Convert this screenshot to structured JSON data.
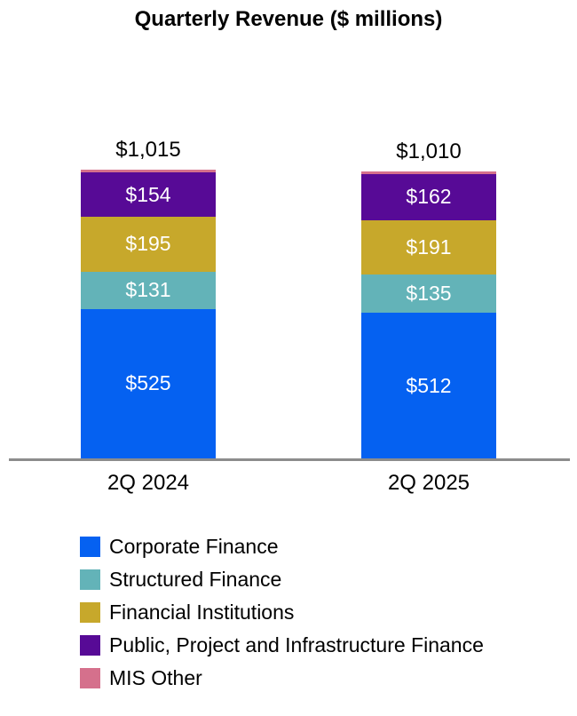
{
  "chart_data": {
    "type": "bar",
    "stacked": true,
    "title": "Quarterly Revenue ($ millions)",
    "categories": [
      "2Q 2024",
      "2Q 2025"
    ],
    "totals": [
      "$1,015",
      "$1,010"
    ],
    "series": [
      {
        "name": "Corporate Finance",
        "color": "#0561f1",
        "values": [
          525,
          512
        ],
        "labels": [
          "$525",
          "$512"
        ]
      },
      {
        "name": "Structured Finance",
        "color": "#63b3b8",
        "values": [
          131,
          135
        ],
        "labels": [
          "$131",
          "$135"
        ]
      },
      {
        "name": "Financial Institutions",
        "color": "#c7a82b",
        "values": [
          195,
          191
        ],
        "labels": [
          "$195",
          "$191"
        ]
      },
      {
        "name": "Public, Project and Infrastructure Finance",
        "color": "#570a96",
        "values": [
          154,
          162
        ],
        "labels": [
          "$154",
          "$162"
        ]
      },
      {
        "name": "MIS Other",
        "color": "#d5708c",
        "values": [
          10,
          10
        ],
        "labels": [
          "",
          ""
        ]
      }
    ],
    "grid": false,
    "legend_position": "bottom-left",
    "axis_color": "#8c8c8c",
    "inside_label_color": "#ffffff",
    "ylim": [
      0,
      1100
    ]
  }
}
